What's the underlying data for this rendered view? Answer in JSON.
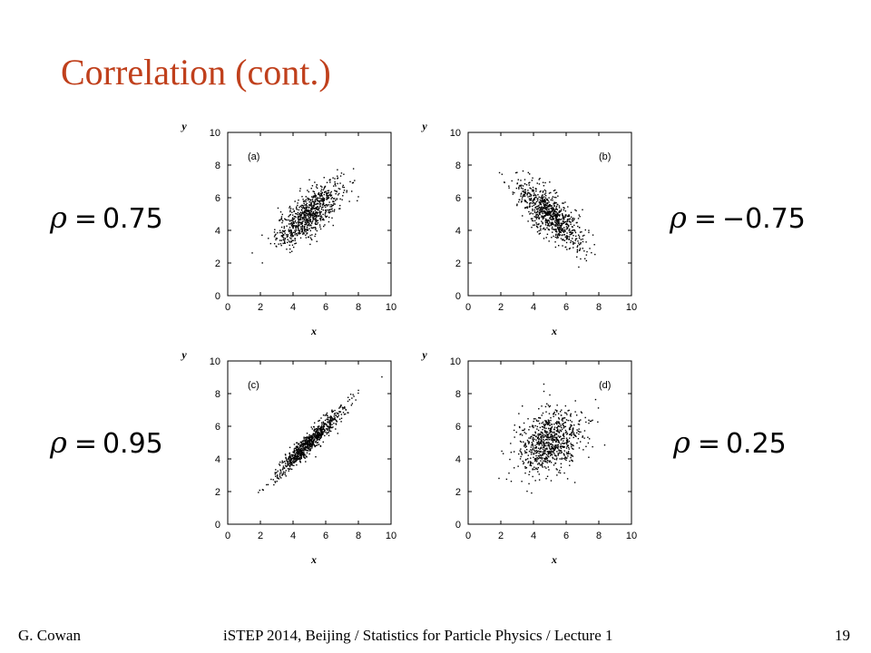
{
  "title": "Correlation (cont.)",
  "labels": {
    "a": {
      "rho": "ρ",
      "eq": "=",
      "value": "0.75"
    },
    "b": {
      "rho": "ρ",
      "eq": "=",
      "value": "−0.75"
    },
    "c": {
      "rho": "ρ",
      "eq": "=",
      "value": "0.95"
    },
    "d": {
      "rho": "ρ",
      "eq": "=",
      "value": "0.25"
    }
  },
  "footer": {
    "author": "G. Cowan",
    "center": "iSTEP 2014, Beijing / Statistics for Particle Physics / Lecture 1",
    "page": "19"
  },
  "chart_data": [
    {
      "type": "scatter",
      "panel_label": "(a)",
      "xlabel": "x",
      "ylabel": "y",
      "xlim": [
        0,
        10
      ],
      "ylim": [
        0,
        10
      ],
      "xticks": [
        "0",
        "2",
        "4",
        "6",
        "8",
        "10"
      ],
      "yticks": [
        "0",
        "2",
        "4",
        "6",
        "8",
        "10"
      ],
      "correlation": 0.75,
      "mean": [
        5,
        5
      ],
      "std": [
        1,
        1
      ],
      "n_points": 800,
      "marker_color": "#000000"
    },
    {
      "type": "scatter",
      "panel_label": "(b)",
      "xlabel": "x",
      "ylabel": "y",
      "xlim": [
        0,
        10
      ],
      "ylim": [
        0,
        10
      ],
      "xticks": [
        "0",
        "2",
        "4",
        "6",
        "8",
        "10"
      ],
      "yticks": [
        "0",
        "2",
        "4",
        "6",
        "8",
        "10"
      ],
      "correlation": -0.75,
      "mean": [
        5,
        5
      ],
      "std": [
        1,
        1
      ],
      "n_points": 800,
      "marker_color": "#000000"
    },
    {
      "type": "scatter",
      "panel_label": "(c)",
      "xlabel": "x",
      "ylabel": "y",
      "xlim": [
        0,
        10
      ],
      "ylim": [
        0,
        10
      ],
      "xticks": [
        "0",
        "2",
        "4",
        "6",
        "8",
        "10"
      ],
      "yticks": [
        "0",
        "2",
        "4",
        "6",
        "8",
        "10"
      ],
      "correlation": 0.95,
      "mean": [
        5,
        5
      ],
      "std": [
        1,
        1
      ],
      "n_points": 800,
      "marker_color": "#000000"
    },
    {
      "type": "scatter",
      "panel_label": "(d)",
      "xlabel": "x",
      "ylabel": "y",
      "xlim": [
        0,
        10
      ],
      "ylim": [
        0,
        10
      ],
      "xticks": [
        "0",
        "2",
        "4",
        "6",
        "8",
        "10"
      ],
      "yticks": [
        "0",
        "2",
        "4",
        "6",
        "8",
        "10"
      ],
      "correlation": 0.25,
      "mean": [
        5,
        5
      ],
      "std": [
        1,
        1
      ],
      "n_points": 800,
      "marker_color": "#000000"
    }
  ]
}
